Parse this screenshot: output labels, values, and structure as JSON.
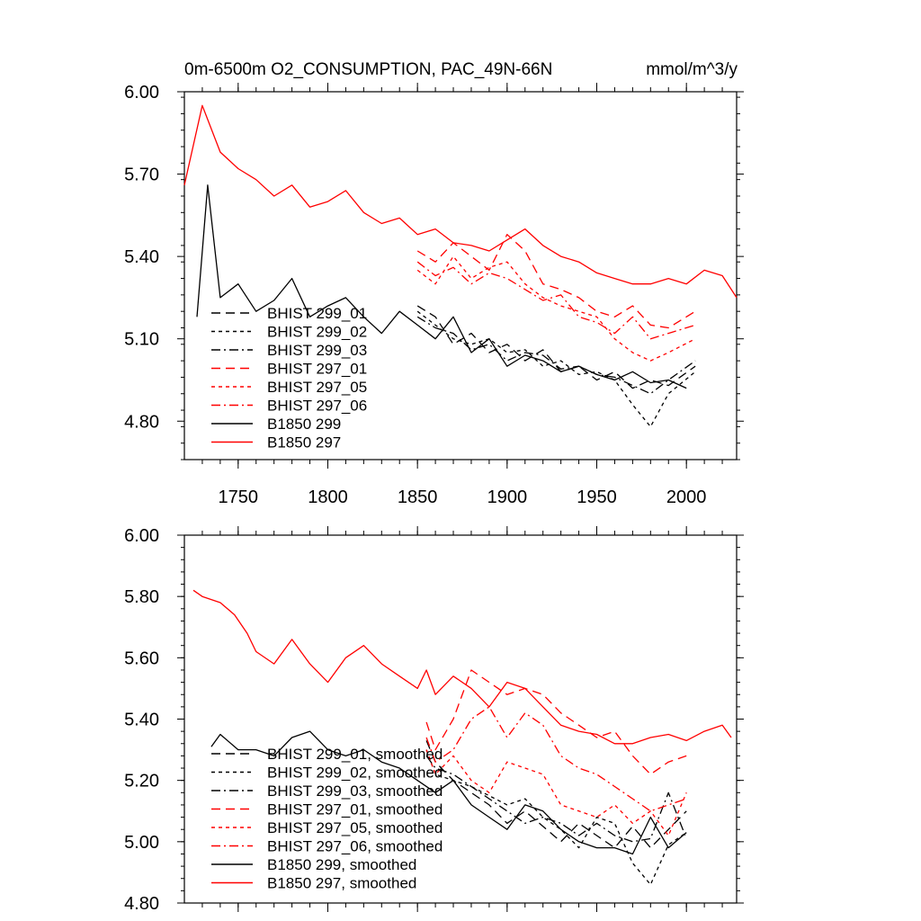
{
  "chart_data": [
    {
      "type": "line",
      "title": "0m-6500m O2_CONSUMPTION, PAC_49N-66N",
      "units": "mmol/m^3/y",
      "xlim": [
        1720,
        2028
      ],
      "ylim": [
        4.66,
        6.0
      ],
      "xticks": [
        1750,
        1800,
        1850,
        1900,
        1950,
        2000
      ],
      "yticks": [
        "6.00",
        "5.70",
        "5.40",
        "5.10",
        "4.80"
      ],
      "ytick_values": [
        6.0,
        5.7,
        5.4,
        5.1,
        4.8
      ],
      "series": [
        {
          "name": "BHIST 299_01",
          "color": "#000000",
          "dash": "long-dash",
          "x": [
            1850,
            1860,
            1870,
            1880,
            1890,
            1900,
            1910,
            1920,
            1930,
            1940,
            1950,
            1960,
            1970,
            1980,
            1990,
            2005
          ],
          "y": [
            5.22,
            5.18,
            5.08,
            5.12,
            5.05,
            5.08,
            5.02,
            5.06,
            4.98,
            5.0,
            4.95,
            4.98,
            4.92,
            4.95,
            4.93,
            5.0
          ]
        },
        {
          "name": "BHIST 299_02",
          "color": "#000000",
          "dash": "short-dash",
          "x": [
            1850,
            1860,
            1870,
            1880,
            1890,
            1900,
            1910,
            1920,
            1930,
            1940,
            1950,
            1960,
            1970,
            1980,
            1990,
            2005
          ],
          "y": [
            5.2,
            5.15,
            5.1,
            5.08,
            5.1,
            5.05,
            5.06,
            5.0,
            5.02,
            4.97,
            4.98,
            4.95,
            4.86,
            4.78,
            4.9,
            4.98
          ]
        },
        {
          "name": "BHIST 299_03",
          "color": "#000000",
          "dash": "dash-dot",
          "x": [
            1850,
            1860,
            1870,
            1880,
            1890,
            1900,
            1910,
            1920,
            1930,
            1940,
            1950,
            1960,
            1970,
            1980,
            1990,
            2005
          ],
          "y": [
            5.18,
            5.14,
            5.12,
            5.06,
            5.08,
            5.02,
            5.05,
            5.04,
            4.99,
            5.0,
            4.97,
            4.96,
            4.93,
            4.9,
            4.95,
            5.02
          ]
        },
        {
          "name": "BHIST 297_01",
          "color": "#ff0000",
          "dash": "long-dash",
          "x": [
            1850,
            1860,
            1870,
            1880,
            1890,
            1900,
            1910,
            1920,
            1930,
            1940,
            1950,
            1960,
            1970,
            1980,
            1990,
            2005
          ],
          "y": [
            5.42,
            5.38,
            5.45,
            5.4,
            5.35,
            5.48,
            5.42,
            5.3,
            5.28,
            5.25,
            5.2,
            5.18,
            5.22,
            5.15,
            5.14,
            5.2
          ]
        },
        {
          "name": "BHIST 297_05",
          "color": "#ff0000",
          "dash": "short-dash",
          "x": [
            1850,
            1860,
            1870,
            1880,
            1890,
            1900,
            1910,
            1920,
            1930,
            1940,
            1950,
            1960,
            1970,
            1980,
            1990,
            2005
          ],
          "y": [
            5.35,
            5.3,
            5.4,
            5.32,
            5.36,
            5.38,
            5.3,
            5.25,
            5.22,
            5.2,
            5.18,
            5.1,
            5.05,
            5.02,
            5.05,
            5.1
          ]
        },
        {
          "name": "BHIST 297_06",
          "color": "#ff0000",
          "dash": "dash-dot",
          "x": [
            1850,
            1860,
            1870,
            1880,
            1890,
            1900,
            1910,
            1920,
            1930,
            1940,
            1950,
            1960,
            1970,
            1980,
            1990,
            2005
          ],
          "y": [
            5.38,
            5.33,
            5.36,
            5.3,
            5.34,
            5.32,
            5.28,
            5.24,
            5.26,
            5.18,
            5.16,
            5.12,
            5.18,
            5.1,
            5.12,
            5.15
          ]
        },
        {
          "name": "B1850 299",
          "color": "#000000",
          "dash": "solid",
          "x": [
            1727,
            1733,
            1740,
            1750,
            1760,
            1770,
            1780,
            1790,
            1800,
            1810,
            1820,
            1830,
            1840,
            1850,
            1860,
            1870,
            1880,
            1890,
            1900,
            1910,
            1920,
            1930,
            1940,
            1950,
            1960,
            1970,
            1980,
            1990,
            2000
          ],
          "y": [
            5.18,
            5.66,
            5.25,
            5.3,
            5.2,
            5.24,
            5.32,
            5.18,
            5.22,
            5.25,
            5.18,
            5.12,
            5.2,
            5.15,
            5.1,
            5.18,
            5.05,
            5.1,
            5.0,
            5.04,
            5.02,
            4.98,
            5.0,
            4.97,
            4.95,
            4.98,
            4.94,
            4.95,
            4.92
          ]
        },
        {
          "name": "B1850 297",
          "color": "#ff0000",
          "dash": "solid",
          "x": [
            1720,
            1730,
            1740,
            1750,
            1760,
            1770,
            1780,
            1790,
            1800,
            1810,
            1820,
            1830,
            1840,
            1850,
            1860,
            1870,
            1880,
            1890,
            1900,
            1910,
            1920,
            1930,
            1940,
            1950,
            1960,
            1970,
            1980,
            1990,
            2000,
            2010,
            2020,
            2028
          ],
          "y": [
            5.66,
            5.95,
            5.78,
            5.72,
            5.68,
            5.62,
            5.66,
            5.58,
            5.6,
            5.64,
            5.56,
            5.52,
            5.54,
            5.48,
            5.5,
            5.45,
            5.44,
            5.42,
            5.46,
            5.5,
            5.44,
            5.4,
            5.38,
            5.34,
            5.32,
            5.3,
            5.3,
            5.32,
            5.3,
            5.35,
            5.33,
            5.25
          ]
        }
      ]
    },
    {
      "type": "line",
      "xlim": [
        1720,
        2028
      ],
      "ylim": [
        4.8,
        6.0
      ],
      "yticks": [
        "6.00",
        "5.80",
        "5.60",
        "5.40",
        "5.20",
        "5.00",
        "4.80"
      ],
      "ytick_values": [
        6.0,
        5.8,
        5.6,
        5.4,
        5.2,
        5.0,
        4.8
      ],
      "series": [
        {
          "name": "BHIST 299_01, smoothed",
          "color": "#000000",
          "dash": "long-dash",
          "x": [
            1855,
            1860,
            1870,
            1880,
            1890,
            1900,
            1910,
            1920,
            1930,
            1940,
            1950,
            1960,
            1970,
            1980,
            1990,
            2000
          ],
          "y": [
            5.33,
            5.26,
            5.2,
            5.16,
            5.12,
            5.06,
            5.1,
            5.05,
            5.0,
            5.06,
            5.02,
            4.98,
            5.05,
            4.98,
            5.04,
            5.1
          ]
        },
        {
          "name": "BHIST 299_02, smoothed",
          "color": "#000000",
          "dash": "short-dash",
          "x": [
            1855,
            1860,
            1870,
            1880,
            1890,
            1900,
            1910,
            1920,
            1930,
            1940,
            1950,
            1960,
            1970,
            1980,
            1990,
            2000
          ],
          "y": [
            5.3,
            5.22,
            5.2,
            5.18,
            5.15,
            5.12,
            5.14,
            5.08,
            5.04,
            4.98,
            5.08,
            5.06,
            4.93,
            4.86,
            4.99,
            5.03
          ]
        },
        {
          "name": "BHIST 299_03, smoothed",
          "color": "#000000",
          "dash": "dash-dot",
          "x": [
            1855,
            1860,
            1870,
            1880,
            1890,
            1900,
            1910,
            1920,
            1930,
            1940,
            1950,
            1960,
            1970,
            1980,
            1990,
            2000
          ],
          "y": [
            5.28,
            5.24,
            5.22,
            5.18,
            5.14,
            5.1,
            5.06,
            5.08,
            5.06,
            5.02,
            5.06,
            5.02,
            5.0,
            5.01,
            5.16,
            5.01
          ]
        },
        {
          "name": "BHIST 297_01, smoothed",
          "color": "#ff0000",
          "dash": "long-dash",
          "x": [
            1855,
            1860,
            1870,
            1880,
            1890,
            1900,
            1910,
            1920,
            1930,
            1940,
            1950,
            1960,
            1970,
            1980,
            1990,
            2000
          ],
          "y": [
            5.39,
            5.3,
            5.4,
            5.56,
            5.52,
            5.48,
            5.5,
            5.48,
            5.42,
            5.38,
            5.34,
            5.36,
            5.28,
            5.22,
            5.26,
            5.28
          ]
        },
        {
          "name": "BHIST 297_05, smoothed",
          "color": "#ff0000",
          "dash": "short-dash",
          "x": [
            1855,
            1860,
            1870,
            1880,
            1890,
            1900,
            1910,
            1920,
            1930,
            1940,
            1950,
            1960,
            1970,
            1980,
            1990,
            2000
          ],
          "y": [
            5.3,
            5.22,
            5.28,
            5.2,
            5.16,
            5.26,
            5.24,
            5.22,
            5.12,
            5.1,
            5.08,
            5.12,
            5.06,
            5.1,
            5.02,
            5.16
          ]
        },
        {
          "name": "BHIST 297_06, smoothed",
          "color": "#ff0000",
          "dash": "dash-dot",
          "x": [
            1855,
            1860,
            1870,
            1880,
            1890,
            1900,
            1910,
            1920,
            1930,
            1940,
            1950,
            1960,
            1970,
            1980,
            1990,
            2000
          ],
          "y": [
            5.34,
            5.26,
            5.3,
            5.4,
            5.44,
            5.34,
            5.42,
            5.38,
            5.28,
            5.24,
            5.22,
            5.18,
            5.14,
            5.1,
            5.12,
            5.14
          ]
        },
        {
          "name": "B1850 299, smoothed",
          "color": "#000000",
          "dash": "solid",
          "x": [
            1735,
            1740,
            1750,
            1760,
            1770,
            1780,
            1790,
            1800,
            1810,
            1820,
            1830,
            1840,
            1850,
            1860,
            1870,
            1880,
            1890,
            1900,
            1910,
            1920,
            1930,
            1940,
            1950,
            1960,
            1970,
            1980,
            1990,
            2000
          ],
          "y": [
            5.31,
            5.35,
            5.3,
            5.3,
            5.28,
            5.34,
            5.36,
            5.3,
            5.28,
            5.3,
            5.26,
            5.24,
            5.2,
            5.16,
            5.2,
            5.12,
            5.08,
            5.04,
            5.12,
            5.1,
            5.04,
            5.0,
            4.98,
            4.98,
            4.96,
            5.08,
            4.98,
            5.03
          ]
        },
        {
          "name": "B1850 297, smoothed",
          "color": "#ff0000",
          "dash": "solid",
          "x": [
            1725,
            1730,
            1740,
            1748,
            1755,
            1760,
            1770,
            1780,
            1790,
            1800,
            1810,
            1820,
            1830,
            1840,
            1850,
            1855,
            1860,
            1870,
            1880,
            1890,
            1900,
            1910,
            1920,
            1930,
            1940,
            1950,
            1960,
            1970,
            1980,
            1990,
            2000,
            2010,
            2020,
            2025
          ],
          "y": [
            5.82,
            5.8,
            5.78,
            5.74,
            5.68,
            5.62,
            5.58,
            5.66,
            5.58,
            5.52,
            5.6,
            5.64,
            5.58,
            5.54,
            5.5,
            5.56,
            5.48,
            5.54,
            5.5,
            5.44,
            5.52,
            5.5,
            5.44,
            5.38,
            5.36,
            5.35,
            5.32,
            5.32,
            5.34,
            5.35,
            5.33,
            5.36,
            5.38,
            5.34
          ]
        }
      ]
    }
  ]
}
